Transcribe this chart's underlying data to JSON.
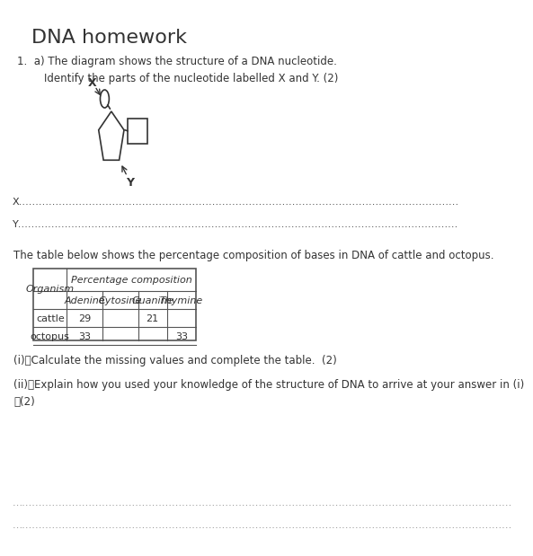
{
  "title": "DNA homework",
  "title_fontsize": 16,
  "question_text": "1.  a) The diagram shows the structure of a DNA nucleotide.\n        Identify the parts of the nucleotide labelled X and Y. (2)",
  "x_label_line": "X……………………………………………………………………………………………………………………",
  "y_label_line": "Y……………………………………………………………………………………………………………………",
  "table_text": "The table below shows the percentage composition of bases in DNA of cattle and octopus.",
  "question_i": "(i)\tCalculate the missing values and complete the table.  (2)",
  "question_ii": "(ii)\tExplain how you used your knowledge of the structure of DNA to arrive at your answer in (i)\n\t(2)",
  "answer_dots": "……………………………………………………………………………………………………………………………………",
  "bg_color": "#ffffff",
  "text_color": "#333333",
  "font_size": 8,
  "table_header_top": "Percentage composition",
  "table_col_headers": [
    "Adenine",
    "Cytosine",
    "Guanine",
    "Thymine"
  ],
  "table_row_headers": [
    "Organism",
    "cattle",
    "octopus"
  ],
  "table_data": [
    [
      "29",
      "",
      "21",
      ""
    ],
    [
      "33",
      "",
      "",
      "33"
    ]
  ]
}
